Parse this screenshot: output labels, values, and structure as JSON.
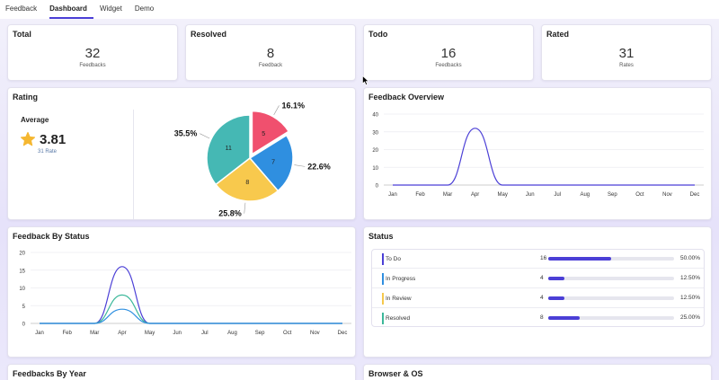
{
  "tabs": [
    {
      "label": "Feedback",
      "active": false
    },
    {
      "label": "Dashboard",
      "active": true
    },
    {
      "label": "Widget",
      "active": false
    },
    {
      "label": "Demo",
      "active": false
    }
  ],
  "stats": [
    {
      "title": "Total",
      "value": "32",
      "sub": "Feedbacks"
    },
    {
      "title": "Resolved",
      "value": "8",
      "sub": "Feedback"
    },
    {
      "title": "Todo",
      "value": "16",
      "sub": "Feedbacks"
    },
    {
      "title": "Rated",
      "value": "31",
      "sub": "Rates"
    }
  ],
  "rating": {
    "title": "Rating",
    "average_label": "Average",
    "average_value": "3.81",
    "rate_count": "31 Rate",
    "star_color": "#f5b731"
  },
  "feedback_overview": {
    "title": "Feedback Overview"
  },
  "feedback_by_status": {
    "title": "Feedback By Status"
  },
  "status": {
    "title": "Status",
    "rows": [
      {
        "label": "To Do",
        "count": "16",
        "percent": "50.00%",
        "fraction": 0.5,
        "color": "#4b3fd6"
      },
      {
        "label": "In Progress",
        "count": "4",
        "percent": "12.50%",
        "fraction": 0.125,
        "color": "#2f8fe0"
      },
      {
        "label": "In Review",
        "count": "4",
        "percent": "12.50%",
        "fraction": 0.125,
        "color": "#f5c84c"
      },
      {
        "label": "Resolved",
        "count": "8",
        "percent": "25.00%",
        "fraction": 0.25,
        "color": "#3cb89a"
      }
    ]
  },
  "bottom_cards": {
    "by_year": "Feedbacks By Year",
    "browser_os": "Browser & OS"
  },
  "chart_data": [
    {
      "type": "pie",
      "title": "",
      "slices": [
        {
          "value": 5,
          "label": "5",
          "percent": "16.1%",
          "color": "#f0506e"
        },
        {
          "value": 7,
          "label": "7",
          "percent": "22.6%",
          "color": "#2f8fe0"
        },
        {
          "value": 8,
          "label": "8",
          "percent": "25.8%",
          "color": "#f8c94d"
        },
        {
          "value": 11,
          "label": "11",
          "percent": "35.5%",
          "color": "#45b8b4"
        }
      ]
    },
    {
      "type": "line",
      "title": "",
      "categories": [
        "Jan",
        "Feb",
        "Mar",
        "Apr",
        "May",
        "Jun",
        "Jul",
        "Aug",
        "Sep",
        "Oct",
        "Nov",
        "Dec"
      ],
      "yticks": [
        "0",
        "10",
        "20",
        "30",
        "40"
      ],
      "ylim": [
        0,
        40
      ],
      "series": [
        {
          "values": [
            0,
            0,
            0,
            32,
            0,
            0,
            0,
            0,
            0,
            0,
            0,
            0
          ],
          "color": "#4b3fd6"
        }
      ]
    },
    {
      "type": "line",
      "title": "",
      "categories": [
        "Jan",
        "Feb",
        "Mar",
        "Apr",
        "May",
        "Jun",
        "Jul",
        "Aug",
        "Sep",
        "Oct",
        "Nov",
        "Dec"
      ],
      "yticks": [
        "0",
        "5",
        "10",
        "15",
        "20"
      ],
      "ylim": [
        0,
        20
      ],
      "series": [
        {
          "values": [
            0,
            0,
            0,
            16,
            0,
            0,
            0,
            0,
            0,
            0,
            0,
            0
          ],
          "color": "#4b3fd6"
        },
        {
          "values": [
            0,
            0,
            0,
            8,
            0,
            0,
            0,
            0,
            0,
            0,
            0,
            0
          ],
          "color": "#3cb89a"
        },
        {
          "values": [
            0,
            0,
            0,
            4,
            0,
            0,
            0,
            0,
            0,
            0,
            0,
            0
          ],
          "color": "#2f8fe0"
        }
      ]
    }
  ]
}
